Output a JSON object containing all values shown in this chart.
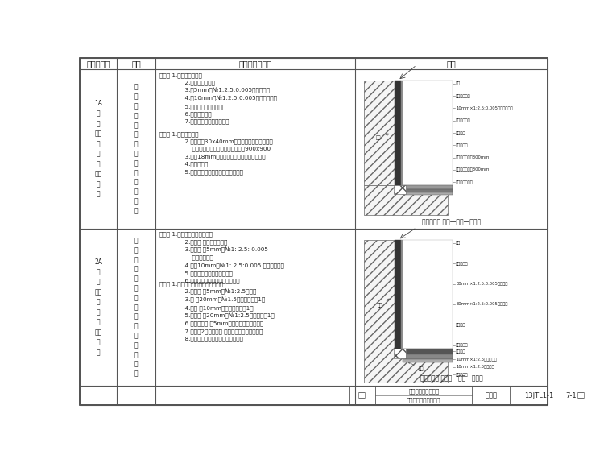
{
  "bg_color": "#ffffff",
  "line_color": "#555555",
  "text_color": "#222222",
  "col_headers": [
    "符号及类型",
    "名称",
    "材料及分层做法",
    "示例"
  ],
  "row1_id": "1A\n片\n地\n拼对\n缝缝\n处\n上\n层处\n理\n法",
  "row1_name": "片\n直\n片\n层\n深\n土\n淡\n渗\n地\n面\n直\n土\n地\n板",
  "row1_wall_text": "片面： 1.先贴防护角面层\n              2.铺鸟一丝层经网\n              3.屈5mm层№1:2.5:0.005水泥沙求毛\n              4.屈10mm层№1:2.5:0.005水泥沙内贴芗\n              5.求平层是気派氒公公矣\n              6.贴层层胶一层\n              7.贴层面并注定缝缝深岐字",
  "row1_floor_text": "地面： 1.水泥沙求平层\n              2.用将格为30x40mm的土山筐设表面、山层防\n                  火、防潮、防腹涂山层层层、门口900x900\n              3.洗铺18mm层的山土层上抟大成层门火涂山\n              4.土地地山路\n              5.土淡渗山路、注定地板的升将山孔",
  "row1_caption": "示案工号： 地板—墙层—阴湿线",
  "row2_id": "2A\n片\n地\n拼对\n缝缝\n处\n上\n层处\n理\n法",
  "row2_name": "片\n直\n层\n胶\n深\n土\n淡\n渗\n地\n面\n直\n土\n地\n面\n号",
  "row2_wall_text": "片面： 1.年片直深胶防护角面层\n              2.贴直层 上铺一丝层经网\n              3.求经网 屈5mm层№1: 2.5: 0.005\n                  水泥沙求求层\n              4.贴屈10mm层№1: 2.5:0.005 水泥沙求层层\n              5.求层层水求层专用内层贵层\n              6.贴层层层层的求水求层层层上层",
  "row2_floor_text": "地面： 1.年进山地面层深层面层层一层\n              2.贴直层 屈5mm层№1:2.5水泥沙\n              3.层 屈20mm层№1.5水泥沙层求层1层\n              4.年层 屈10mm水泥沙防层层层1层\n              5.层层层 居20mm层№1:2.5水泥沙粘层1层\n              6.层层层层层 屈5mm层的地层层层层层层层\n              7.层层层2层、注定层 层层层层中层层层层层层\n              8.土淡渗山路、注定地板的升将山孔",
  "row2_caption": "示案工号： 土地板—片层—阴湿线",
  "footer_label": "图名",
  "footer_name1": "高分子地地地地地板",
  "footer_name2": "高分乙烯地地地地地地",
  "footer_atlas": "图集号",
  "footer_atlas_val": "13JTL1-1",
  "footer_page_label": "页次",
  "footer_page_val": "7-1"
}
